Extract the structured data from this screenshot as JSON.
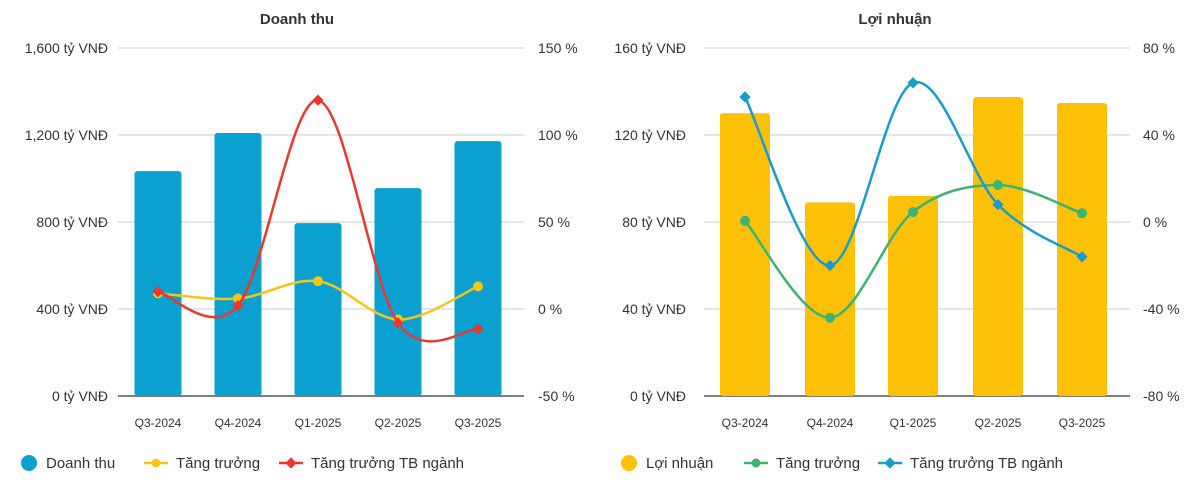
{
  "chart_data": [
    {
      "type": "bar",
      "title": "Doanh thu",
      "categories": [
        "Q3-2024",
        "Q4-2024",
        "Q1-2025",
        "Q2-2025",
        "Q3-2025"
      ],
      "ylim": [
        0,
        1600
      ],
      "yticks": [
        "0 tỷ VNĐ",
        "400 tỷ VNĐ",
        "800 tỷ VNĐ",
        "1,200 tỷ VNĐ",
        "1,600 tỷ VNĐ"
      ],
      "y2lim": [
        -50,
        150
      ],
      "y2ticks": [
        "-50 %",
        "0 %",
        "50 %",
        "100 %",
        "150 %"
      ],
      "bar": {
        "name": "Doanh thu",
        "color": "#0aa0d0",
        "values": [
          1034,
          1209,
          795,
          956,
          1172
        ]
      },
      "series": [
        {
          "name": "Tăng trưởng",
          "color": "#f5c518",
          "marker": "circle",
          "values": [
            9,
            6,
            16,
            -6,
            13
          ]
        },
        {
          "name": "Tăng trưởng TB ngành",
          "color": "#e8392e",
          "marker": "diamond",
          "values": [
            10,
            2,
            120,
            -8,
            -11.5
          ]
        }
      ]
    },
    {
      "type": "bar",
      "title": "Lợi nhuận",
      "categories": [
        "Q3-2024",
        "Q4-2024",
        "Q1-2025",
        "Q2-2025",
        "Q3-2025"
      ],
      "ylim": [
        0,
        160
      ],
      "yticks": [
        "0 tỷ VNĐ",
        "40 tỷ VNĐ",
        "80 tỷ VNĐ",
        "120 tỷ VNĐ",
        "160 tỷ VNĐ"
      ],
      "y2lim": [
        -80,
        80
      ],
      "y2ticks": [
        "-80 %",
        "-40 %",
        "0 %",
        "40 %",
        "80 %"
      ],
      "bar": {
        "name": "Lợi nhuận",
        "color": "#ffc107",
        "values": [
          130,
          89,
          92,
          137.5,
          134.7
        ]
      },
      "series": [
        {
          "name": "Tăng trưởng",
          "color": "#3cb371",
          "marker": "circle",
          "values": [
            0.5,
            -44,
            4.6,
            17,
            4
          ]
        },
        {
          "name": "Tăng trưởng TB ngành",
          "color": "#1a9cc8",
          "marker": "diamond",
          "values": [
            57.5,
            -20,
            64,
            8,
            -16
          ]
        }
      ]
    }
  ]
}
